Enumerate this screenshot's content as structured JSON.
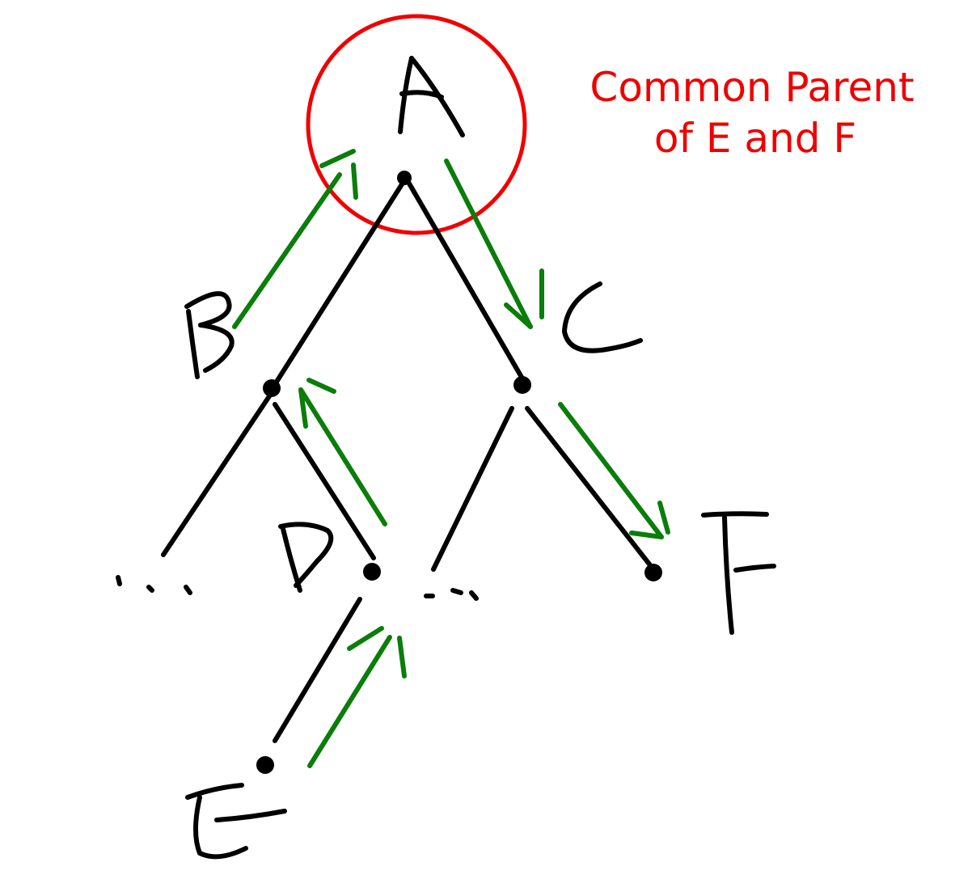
{
  "diagram": {
    "nodes": [
      {
        "id": "A",
        "label": "A"
      },
      {
        "id": "B",
        "label": "B"
      },
      {
        "id": "C",
        "label": "C"
      },
      {
        "id": "D",
        "label": "D"
      },
      {
        "id": "E",
        "label": "E"
      },
      {
        "id": "F",
        "label": "F"
      }
    ],
    "edges": [
      {
        "from": "A",
        "to": "B"
      },
      {
        "from": "A",
        "to": "C"
      },
      {
        "from": "B",
        "to": "..."
      },
      {
        "from": "B",
        "to": "D"
      },
      {
        "from": "C",
        "to": "..."
      },
      {
        "from": "C",
        "to": "F"
      },
      {
        "from": "D",
        "to": "E"
      }
    ],
    "path_highlight": {
      "color": "#0a7d0a",
      "sequence": [
        "E",
        "D",
        "B",
        "A",
        "C",
        "F"
      ]
    },
    "highlighted_node": "A",
    "highlight_color": "#f00000",
    "ellipsis": "...",
    "callout": {
      "line1": "Common Parent",
      "line2": "of E and F",
      "color": "#ee0000"
    }
  }
}
